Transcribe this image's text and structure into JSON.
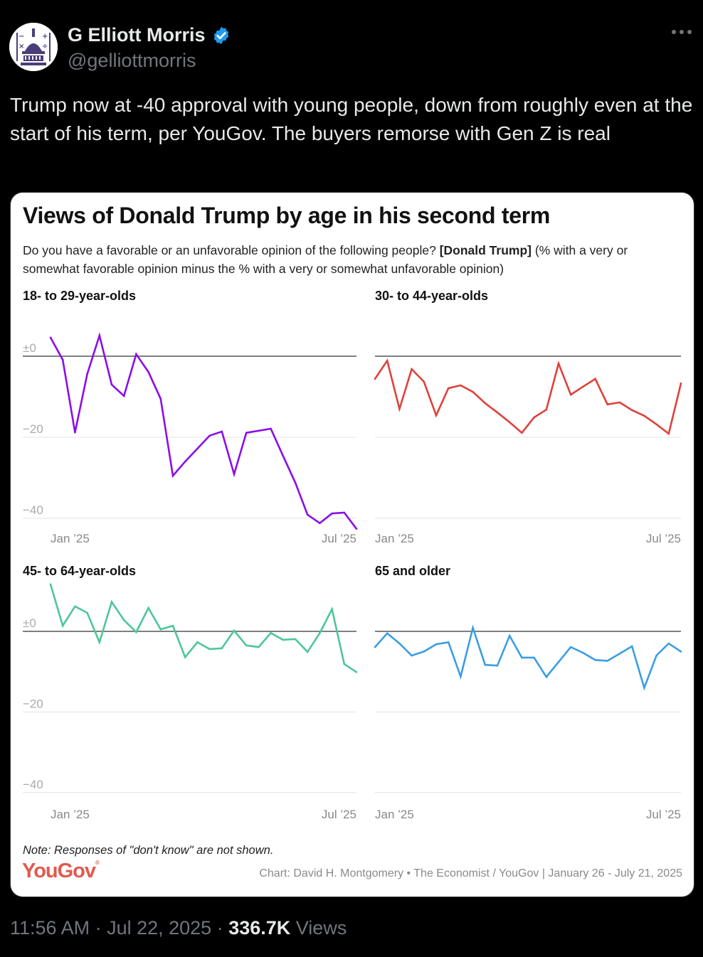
{
  "author": {
    "name": "G Elliott Morris",
    "handle": "@gelliottmorris",
    "verified": true,
    "verified_color": "#1d9bf0"
  },
  "tweet": {
    "text": "Trump now at -40 approval with young people, down from roughly even at the start of his term, per YouGov. The buyers remorse with Gen Z is real"
  },
  "card": {
    "title": "Views of Donald Trump by age in his second term",
    "subtitle_pre": "Do you have a favorable or an unfavorable opinion of the following people? ",
    "subtitle_bold": "[Donald Trump]",
    "subtitle_post": " (% with a very or somewhat favorable opinion minus the % with a very or somewhat unfavorable opinion)",
    "note": "Note: Responses of \"don't know\" are not shown.",
    "logo_text": "YouGov",
    "logo_mark": "®",
    "logo_color": "#e05a4e",
    "source": "Chart: David H. Montgomery • The Economist / YouGov | January 26 - July 21, 2025"
  },
  "chart_data": [
    {
      "type": "line",
      "title": "18- to 29-year-olds",
      "color": "#8b0ee8",
      "ylim": [
        -45,
        8
      ],
      "yticks": [
        0,
        -20,
        -40
      ],
      "ytick_labels": [
        "±0",
        "−20",
        "−40"
      ],
      "xtick_labels": [
        "Jan ’25",
        "Jul ’25"
      ],
      "values": [
        4.6,
        -0.9,
        -18.8,
        -4.4,
        5.1,
        -7.0,
        -9.8,
        0.5,
        -3.9,
        -10.5,
        -29.5,
        -26.0,
        -22.8,
        -19.6,
        -18.6,
        -29.1,
        -18.9,
        -18.4,
        -17.9,
        -24.6,
        -31.2,
        -39.1,
        -41.2,
        -38.8,
        -38.6,
        -42.6
      ]
    },
    {
      "type": "line",
      "title": "30- to 44-year-olds",
      "color": "#e0413a",
      "ylim": [
        -45,
        8
      ],
      "yticks": [
        0,
        -20,
        -40
      ],
      "ytick_labels": [
        "",
        "",
        ""
      ],
      "xtick_labels": [
        "Jan ’25",
        "Jul ’25"
      ],
      "values": [
        -5.6,
        -1.1,
        -13.0,
        -3.2,
        -6.3,
        -14.6,
        -7.9,
        -7.2,
        -8.8,
        -11.6,
        -13.9,
        -16.3,
        -18.9,
        -15.1,
        -13.2,
        -1.8,
        -9.5,
        -7.5,
        -5.6,
        -11.9,
        -11.4,
        -13.3,
        -14.7,
        -16.8,
        -19.1,
        -6.7
      ]
    },
    {
      "type": "line",
      "title": "45- to 64-year-olds",
      "color": "#4cc797",
      "ylim": [
        -45,
        12
      ],
      "yticks": [
        0,
        -20,
        -40
      ],
      "ytick_labels": [
        "±0",
        "−20",
        "−40"
      ],
      "xtick_labels": [
        "Jan ’25",
        "Jul ’25"
      ],
      "values": [
        11.7,
        1.4,
        6.2,
        4.6,
        -2.7,
        7.3,
        2.8,
        -0.2,
        5.8,
        0.5,
        1.4,
        -6.4,
        -2.7,
        -4.4,
        -4.2,
        0.2,
        -3.5,
        -3.9,
        -0.4,
        -2.1,
        -1.9,
        -5.1,
        -0.4,
        5.5,
        -8.1,
        -10.1
      ]
    },
    {
      "type": "line",
      "title": "65 and older",
      "color": "#3b9ee2",
      "ylim": [
        -45,
        12
      ],
      "yticks": [
        0,
        -20,
        -40
      ],
      "ytick_labels": [
        "",
        "",
        ""
      ],
      "xtick_labels": [
        "Jan ’25",
        "Jul ’25"
      ],
      "values": [
        -3.9,
        -0.5,
        -3.0,
        -6.0,
        -5.0,
        -3.2,
        -2.7,
        -11.2,
        0.9,
        -8.3,
        -8.5,
        -1.1,
        -6.5,
        -6.5,
        -11.3,
        -7.6,
        -3.9,
        -5.3,
        -7.1,
        -7.3,
        -5.5,
        -3.7,
        -14.0,
        -6.0,
        -3.0,
        -5.0
      ]
    }
  ],
  "footer": {
    "time": "11:56 AM",
    "separator": " · ",
    "date": "Jul 22, 2025",
    "views_count": "336.7K",
    "views_label": " Views"
  }
}
